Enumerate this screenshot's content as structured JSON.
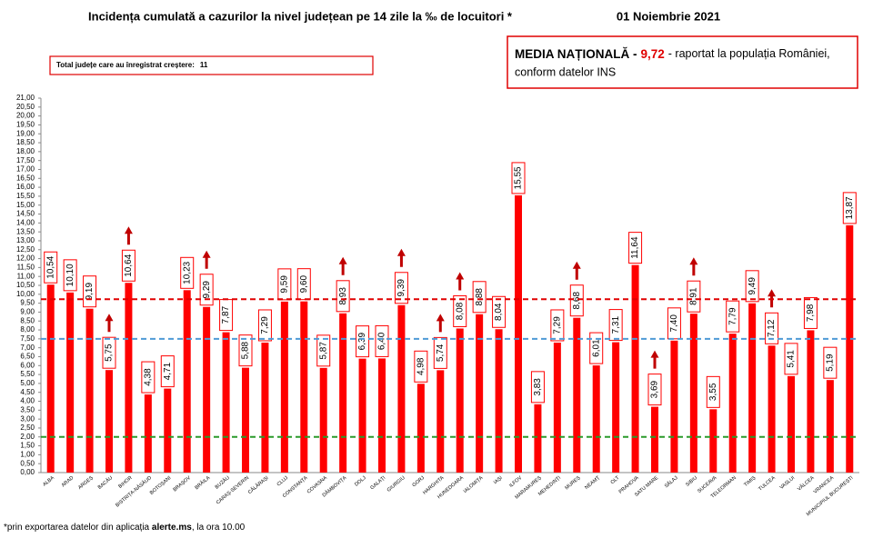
{
  "chart_data": {
    "type": "bar",
    "title": "Incidența cumulată a cazurilor la nivel județean pe 14 zile la ‰ de locuitori *",
    "date": "01 Noiembrie 2021",
    "increase_text": "Total județe care au înregistrat creștere:",
    "increase_count": 11,
    "media_title": "MEDIA NAȚIONALĂ -",
    "media_text": "-  raportat la populația României,",
    "media_text2": "conform datelor INS",
    "footnote": [
      "*prin exportarea datelor din aplicația ",
      "alerte.ms",
      ", la ora 10.00"
    ],
    "color": "#ff0000",
    "arrow_color": "#c00000",
    "categories": [
      "ALBA",
      "ARAD",
      "ARGEȘ",
      "BACĂU",
      "BIHOR",
      "BISTRIȚA-NĂSĂUD",
      "BOTOȘANI",
      "BRAȘOV",
      "BRĂILA",
      "BUZĂU",
      "CARAȘ-SEVERIN",
      "CĂLĂRAȘI",
      "CLUJ",
      "CONSTANȚA",
      "COVASNA",
      "DÂMBOVIȚA",
      "DOLJ",
      "GALAȚI",
      "GIURGIU",
      "GORJ",
      "HARGHITA",
      "HUNEDOARA",
      "IALOMIȚA",
      "IAȘI",
      "ILFOV",
      "MARAMUREȘ",
      "MEHEDINȚI",
      "MUREȘ",
      "NEAMȚ",
      "OLT",
      "PRAHOVA",
      "SATU MARE",
      "SĂLAJ",
      "SIBIU",
      "SUCEAVA",
      "TELEORMAN",
      "TIMIȘ",
      "TULCEA",
      "VASLUI",
      "VÂLCEA",
      "VRANCEA",
      "MUNICIPIUL BUCUREȘTI"
    ],
    "values": [
      10.54,
      10.1,
      9.19,
      5.75,
      10.64,
      4.38,
      4.71,
      10.23,
      9.29,
      7.87,
      5.88,
      7.29,
      9.59,
      9.6,
      5.87,
      8.93,
      6.39,
      6.4,
      9.39,
      4.98,
      5.74,
      8.08,
      8.88,
      8.04,
      15.55,
      3.83,
      7.29,
      8.68,
      6.01,
      7.31,
      11.64,
      3.69,
      7.4,
      8.91,
      3.55,
      7.79,
      9.49,
      7.12,
      5.41,
      7.98,
      5.19,
      13.87
    ],
    "value_labels": [
      "10,54",
      "10,10",
      "9,19",
      "5,75",
      "10,64",
      "4,38",
      "4,71",
      "10,23",
      "9,29",
      "7,87",
      "5,88",
      "7,29",
      "9,59",
      "9,60",
      "5,87",
      "8,93",
      "6,39",
      "6,40",
      "9,39",
      "4,98",
      "5,74",
      "8,08",
      "8,88",
      "8,04",
      "15,55",
      "3,83",
      "7,29",
      "8,68",
      "6,01",
      "7,31",
      "11,64",
      "3,69",
      "7,40",
      "8,91",
      "3,55",
      "7,79",
      "9,49",
      "7,12",
      "5,41",
      "7,98",
      "5,19",
      "13,87"
    ],
    "increase": [
      false,
      false,
      false,
      true,
      true,
      false,
      false,
      false,
      true,
      false,
      false,
      false,
      false,
      false,
      false,
      true,
      false,
      false,
      true,
      false,
      true,
      true,
      false,
      false,
      false,
      false,
      false,
      true,
      false,
      false,
      false,
      true,
      false,
      true,
      false,
      false,
      false,
      true,
      false,
      false,
      false,
      false
    ],
    "reference_lines": [
      {
        "value": 9.72,
        "label": "9,72",
        "color": "#e00000"
      },
      {
        "value": 7.5,
        "color": "#4f9ad6"
      },
      {
        "value": 2.0,
        "color": "#2a9a2a"
      }
    ],
    "ylim": [
      0,
      21
    ],
    "yticks": [
      {
        "value": 0,
        "label": "0,00"
      },
      {
        "value": 0.5,
        "label": "0,50"
      },
      {
        "value": 1,
        "label": "1,00"
      },
      {
        "value": 1.5,
        "label": "1,50"
      },
      {
        "value": 2,
        "label": "2,00"
      },
      {
        "value": 2.5,
        "label": "2,50"
      },
      {
        "value": 3,
        "label": "3,00"
      },
      {
        "value": 3.5,
        "label": "3,50"
      },
      {
        "value": 4,
        "label": "4,00"
      },
      {
        "value": 4.5,
        "label": "4,50"
      },
      {
        "value": 5,
        "label": "5,00"
      },
      {
        "value": 5.5,
        "label": "5,50"
      },
      {
        "value": 6,
        "label": "6,00"
      },
      {
        "value": 6.5,
        "label": "6,50"
      },
      {
        "value": 7,
        "label": "7,00"
      },
      {
        "value": 7.5,
        "label": "7,50"
      },
      {
        "value": 8,
        "label": "8,00"
      },
      {
        "value": 8.5,
        "label": "8,50"
      },
      {
        "value": 9,
        "label": "9,00"
      },
      {
        "value": 9.5,
        "label": "9,50"
      },
      {
        "value": 10,
        "label": "10,00"
      },
      {
        "value": 10.5,
        "label": "10,50"
      },
      {
        "value": 11,
        "label": "11,00"
      },
      {
        "value": 11.5,
        "label": "11,50"
      },
      {
        "value": 12,
        "label": "12,00"
      },
      {
        "value": 12.5,
        "label": "12,50"
      },
      {
        "value": 13,
        "label": "13,00"
      },
      {
        "value": 13.5,
        "label": "13,50"
      },
      {
        "value": 14,
        "label": "14,00"
      },
      {
        "value": 14.5,
        "label": "14,50"
      },
      {
        "value": 15,
        "label": "15,00"
      },
      {
        "value": 15.5,
        "label": "15,50"
      },
      {
        "value": 16,
        "label": "16,00"
      },
      {
        "value": 16.5,
        "label": "16,50"
      },
      {
        "value": 17,
        "label": "17,00"
      },
      {
        "value": 17.5,
        "label": "17,50"
      },
      {
        "value": 18,
        "label": "18,00"
      },
      {
        "value": 18.5,
        "label": "18,50"
      },
      {
        "value": 19,
        "label": "19,00"
      },
      {
        "value": 19.5,
        "label": "19,50"
      },
      {
        "value": 20,
        "label": "20,00"
      },
      {
        "value": 20.5,
        "label": "20,50"
      },
      {
        "value": 21,
        "label": "21,00"
      }
    ],
    "grid": false
  }
}
